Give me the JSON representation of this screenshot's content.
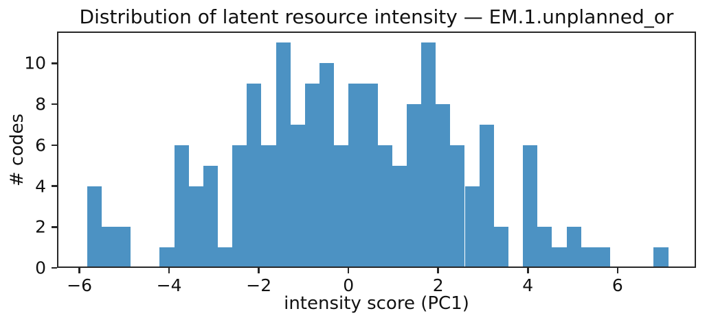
{
  "chart_data": {
    "type": "bar",
    "subtype": "histogram",
    "title": "Distribution of latent resource intensity — EM.1.unplanned_or",
    "xlabel": "intensity score (PC1)",
    "ylabel": "# codes",
    "bin_edges": [
      -5.83,
      -5.506,
      -5.182,
      -4.858,
      -4.534,
      -4.21,
      -3.886,
      -3.562,
      -3.238,
      -2.914,
      -2.59,
      -2.266,
      -1.942,
      -1.618,
      -1.294,
      -0.97,
      -0.646,
      -0.322,
      0.002,
      0.326,
      0.65,
      0.974,
      1.298,
      1.622,
      1.946,
      2.27,
      2.594,
      2.918,
      3.242,
      3.566,
      3.89,
      4.214,
      4.538,
      4.862,
      5.186,
      5.51,
      5.834,
      6.158,
      6.482,
      6.806,
      7.13
    ],
    "counts": [
      4,
      2,
      2,
      0,
      0,
      1,
      6,
      4,
      5,
      1,
      6,
      9,
      6,
      11,
      7,
      9,
      10,
      6,
      9,
      9,
      6,
      5,
      8,
      11,
      8,
      6,
      4,
      7,
      2,
      0,
      6,
      2,
      1,
      2,
      1,
      1,
      0,
      0,
      0,
      1
    ],
    "n_bins": 40,
    "total_count": 178,
    "xlim": [
      -6.5,
      7.75
    ],
    "ylim": [
      0,
      11.55
    ],
    "xticks": [
      -6,
      -4,
      -2,
      0,
      2,
      4,
      6
    ],
    "xtick_labels": [
      "−6",
      "−4",
      "−2",
      "0",
      "2",
      "4",
      "6"
    ],
    "yticks": [
      0,
      2,
      4,
      6,
      8,
      10
    ],
    "ytick_labels": [
      "0",
      "2",
      "4",
      "6",
      "8",
      "10"
    ],
    "bar_color": "#4C92C3",
    "axis_color": "#262626",
    "background_color": "#ffffff",
    "grid": false,
    "legend_position": "none"
  }
}
